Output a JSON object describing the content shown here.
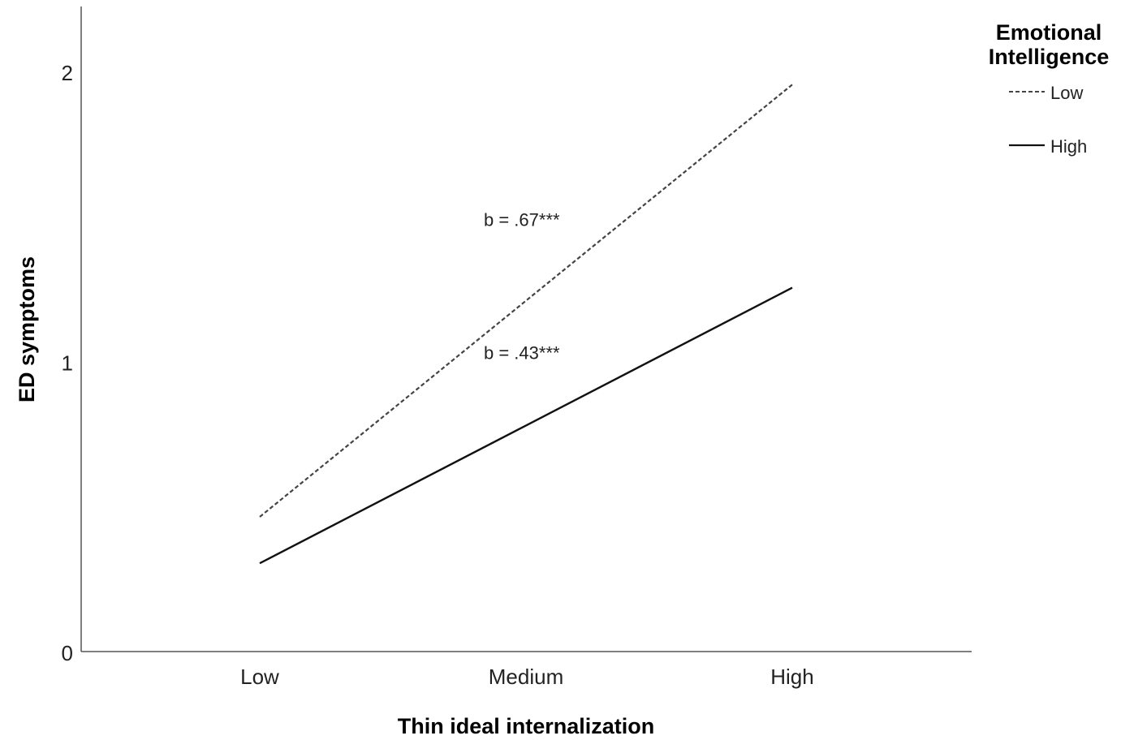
{
  "chart_data": {
    "type": "line",
    "title": "",
    "xlabel": "Thin ideal internalization",
    "ylabel": "ED symptoms",
    "categories": [
      "Low",
      "Medium",
      "High"
    ],
    "ylim": [
      0,
      2.2
    ],
    "yticks": [
      0,
      1,
      2
    ],
    "grid": false,
    "legend": {
      "title_line1": "Emotional",
      "title_line2": "Intelligence",
      "placement": "top-right"
    },
    "series": [
      {
        "name": "Low",
        "style": "dashed",
        "color": "#444444",
        "values": [
          0.47,
          1.215,
          1.96
        ]
      },
      {
        "name": "High",
        "style": "solid",
        "color": "#111111",
        "values": [
          0.31,
          0.785,
          1.26
        ]
      }
    ],
    "annotations": [
      {
        "text": "b = .67***",
        "series": "Low",
        "category": "Medium"
      },
      {
        "text": "b = .43***",
        "series": "High",
        "category": "Medium"
      }
    ]
  }
}
